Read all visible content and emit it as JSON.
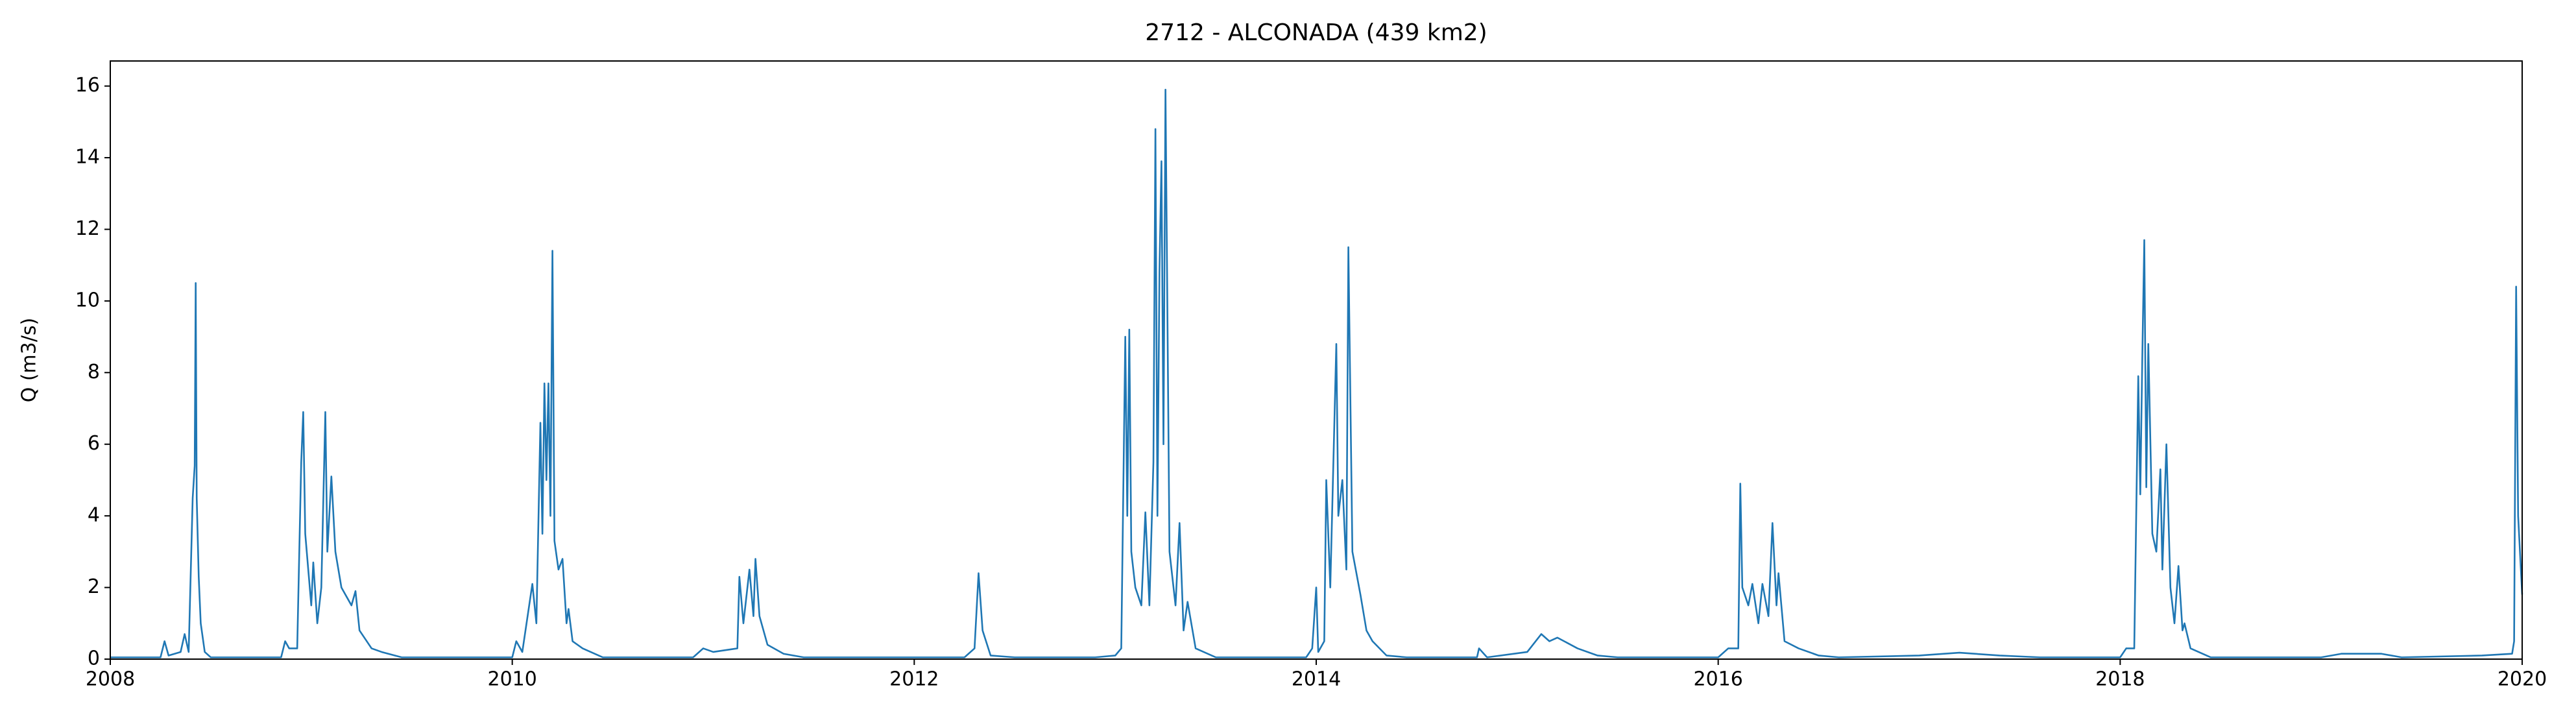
{
  "chart_data": {
    "type": "line",
    "title": "2712 - ALCONADA (439 km2)",
    "ylabel": "Q (m3/s)",
    "x": [
      2008.0,
      2008.25,
      2008.27,
      2008.29,
      2008.35,
      2008.37,
      2008.39,
      2008.41,
      2008.42,
      2008.425,
      2008.43,
      2008.44,
      2008.45,
      2008.47,
      2008.5,
      2008.85,
      2008.87,
      2008.89,
      2008.93,
      2008.95,
      2008.96,
      2008.97,
      2009.0,
      2009.01,
      2009.03,
      2009.05,
      2009.07,
      2009.08,
      2009.1,
      2009.12,
      2009.15,
      2009.2,
      2009.22,
      2009.24,
      2009.3,
      2009.35,
      2009.45,
      2010.0,
      2010.02,
      2010.05,
      2010.1,
      2010.12,
      2010.14,
      2010.15,
      2010.16,
      2010.17,
      2010.18,
      2010.19,
      2010.2,
      2010.21,
      2010.23,
      2010.25,
      2010.27,
      2010.28,
      2010.3,
      2010.35,
      2010.45,
      2010.9,
      2010.95,
      2011.0,
      2011.12,
      2011.13,
      2011.15,
      2011.18,
      2011.2,
      2011.21,
      2011.23,
      2011.27,
      2011.35,
      2011.45,
      2012.25,
      2012.3,
      2012.32,
      2012.34,
      2012.38,
      2012.5,
      2012.9,
      2013.0,
      2013.03,
      2013.05,
      2013.06,
      2013.07,
      2013.08,
      2013.1,
      2013.13,
      2013.15,
      2013.17,
      2013.19,
      2013.2,
      2013.21,
      2013.22,
      2013.23,
      2013.24,
      2013.25,
      2013.27,
      2013.3,
      2013.32,
      2013.34,
      2013.36,
      2013.4,
      2013.5,
      2013.95,
      2013.98,
      2014.0,
      2014.01,
      2014.04,
      2014.05,
      2014.07,
      2014.1,
      2014.11,
      2014.13,
      2014.15,
      2014.16,
      2014.18,
      2014.22,
      2014.25,
      2014.28,
      2014.35,
      2014.45,
      2014.8,
      2014.81,
      2014.85,
      2015.05,
      2015.12,
      2015.16,
      2015.2,
      2015.3,
      2015.4,
      2015.5,
      2016.0,
      2016.05,
      2016.1,
      2016.11,
      2016.12,
      2016.15,
      2016.17,
      2016.2,
      2016.22,
      2016.25,
      2016.27,
      2016.29,
      2016.3,
      2016.33,
      2016.4,
      2016.5,
      2016.6,
      2017.0,
      2017.2,
      2017.4,
      2017.6,
      2018.0,
      2018.03,
      2018.07,
      2018.09,
      2018.1,
      2018.11,
      2018.12,
      2018.13,
      2018.14,
      2018.16,
      2018.18,
      2018.2,
      2018.21,
      2018.23,
      2018.25,
      2018.27,
      2018.29,
      2018.31,
      2018.32,
      2018.35,
      2018.45,
      2019.0,
      2019.1,
      2019.3,
      2019.4,
      2019.8,
      2019.95,
      2019.96,
      2019.97,
      2019.98,
      2020.0
    ],
    "series": [
      {
        "color": "#1f77b4",
        "values": [
          0.05,
          0.05,
          0.5,
          0.1,
          0.2,
          0.7,
          0.2,
          4.5,
          5.4,
          10.5,
          4.5,
          2.3,
          1.0,
          0.2,
          0.05,
          0.05,
          0.5,
          0.3,
          0.3,
          5.5,
          6.9,
          3.5,
          1.5,
          2.7,
          1.0,
          2.0,
          6.9,
          3.0,
          5.1,
          3.0,
          2.0,
          1.5,
          1.9,
          0.8,
          0.3,
          0.2,
          0.05,
          0.05,
          0.5,
          0.2,
          2.1,
          1.0,
          6.6,
          3.5,
          7.7,
          5.0,
          7.7,
          4.0,
          11.4,
          3.3,
          2.5,
          2.8,
          1.0,
          1.4,
          0.5,
          0.3,
          0.05,
          0.05,
          0.3,
          0.2,
          0.3,
          2.3,
          1.0,
          2.5,
          1.2,
          2.8,
          1.2,
          0.4,
          0.15,
          0.05,
          0.05,
          0.3,
          2.4,
          0.8,
          0.1,
          0.05,
          0.05,
          0.1,
          0.3,
          9.0,
          4.0,
          9.2,
          3.0,
          2.0,
          1.5,
          4.1,
          1.5,
          5.5,
          14.8,
          4.0,
          10.8,
          13.9,
          6.0,
          15.9,
          3.0,
          1.5,
          3.8,
          0.8,
          1.6,
          0.3,
          0.05,
          0.05,
          0.3,
          2.0,
          0.2,
          0.5,
          5.0,
          2.0,
          8.8,
          4.0,
          5.0,
          2.5,
          11.5,
          3.0,
          1.8,
          0.8,
          0.5,
          0.1,
          0.05,
          0.05,
          0.3,
          0.05,
          0.2,
          0.7,
          0.5,
          0.6,
          0.3,
          0.1,
          0.05,
          0.05,
          0.3,
          0.3,
          4.9,
          2.0,
          1.5,
          2.1,
          1.0,
          2.1,
          1.2,
          3.8,
          1.5,
          2.4,
          0.5,
          0.3,
          0.1,
          0.05,
          0.1,
          0.18,
          0.1,
          0.05,
          0.05,
          0.3,
          0.3,
          7.9,
          4.6,
          8.4,
          11.7,
          4.8,
          8.8,
          3.5,
          3.0,
          5.3,
          2.5,
          6.0,
          2.0,
          1.0,
          2.6,
          0.8,
          1.0,
          0.3,
          0.05,
          0.05,
          0.15,
          0.15,
          0.05,
          0.1,
          0.15,
          0.5,
          10.4,
          4.0,
          1.8
        ]
      }
    ],
    "xlim": [
      2008,
      2020
    ],
    "xticks": [
      2008,
      2010,
      2012,
      2014,
      2016,
      2018,
      2020
    ],
    "ylim": [
      0,
      16.7
    ],
    "yticks": [
      0,
      2,
      4,
      6,
      8,
      10,
      12,
      14,
      16
    ]
  }
}
